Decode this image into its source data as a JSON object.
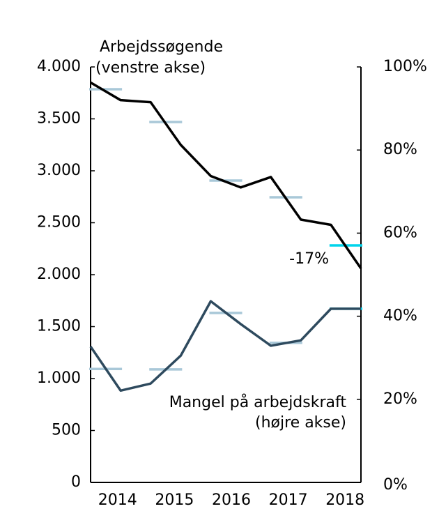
{
  "chart_data": {
    "type": "line",
    "categories": [
      null,
      null,
      null,
      null,
      null,
      null,
      null,
      null,
      null,
      null
    ],
    "year_labels": [
      "2014",
      "2015",
      "2016",
      "2017",
      "2018"
    ],
    "series": [
      {
        "color": "#000000",
        "values": [
          3850,
          3680,
          3660,
          3250,
          2950,
          2840,
          2940,
          2530,
          2480,
          2060
        ]
      },
      {
        "color": "#2e4a5e",
        "axis": "y2",
        "values": [
          32.7,
          22.1,
          23.8,
          30.5,
          43.6,
          38.1,
          32.9,
          34.2,
          41.8,
          41.8
        ]
      }
    ],
    "annual_averages": [
      {
        "colors": [
          "#a9c8d8",
          "#a9c8d8",
          "#a9c8d8",
          "#a9c8d8",
          "#00d4ec"
        ],
        "values": [
          3785,
          3470,
          2906,
          2745,
          2282
        ]
      },
      {
        "colors": [
          "#a9c8d8",
          "#a9c8d8",
          "#a9c8d8",
          "#a9c8d8",
          "#00d4ec"
        ],
        "axis": "y2",
        "values": [
          27.3,
          27.2,
          40.8,
          33.6,
          41.8
        ]
      }
    ],
    "annotations": [
      "Arbejdssøgende",
      "(venstre akse)",
      "Mangel på arbejdskraft",
      "(højre akse)",
      "-17%"
    ],
    "ylim": [
      0,
      4000
    ],
    "yticks": [
      0,
      500,
      {
        "value": 1000,
        "label": "1.000"
      },
      {
        "value": 1500,
        "label": "1.500"
      },
      {
        "value": 2000,
        "label": "2.000"
      },
      {
        "value": 2500,
        "label": "2.500"
      },
      {
        "value": 3000,
        "label": "3.000"
      },
      {
        "value": 3500,
        "label": "3.500"
      },
      {
        "value": 4000,
        "label": "4.000"
      }
    ],
    "y2lim": [
      0,
      100
    ],
    "y2ticks": [
      {
        "value": 0,
        "label": "0%"
      },
      {
        "value": 20,
        "label": "20%"
      },
      {
        "value": 40,
        "label": "40%"
      },
      {
        "value": 60,
        "label": "60%"
      },
      {
        "value": 80,
        "label": "80%"
      },
      {
        "value": 100,
        "label": "100%"
      }
    ]
  }
}
